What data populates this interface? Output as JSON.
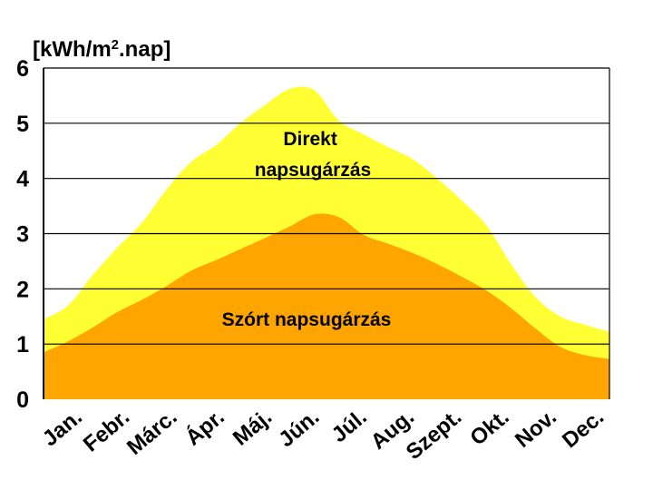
{
  "chart_data": {
    "type": "area",
    "ylabel": "[kWh/m².nap]",
    "ylabel_main": "[kWh/m",
    "ylabel_sup": "2",
    "ylabel_tail": ".nap]",
    "ylim": [
      0,
      6
    ],
    "yticks": [
      "0",
      "1",
      "2",
      "3",
      "4",
      "5",
      "6"
    ],
    "categories": [
      "Jan.",
      "Febr.",
      "Márc.",
      "Ápr.",
      "Máj.",
      "Jún.",
      "Júl.",
      "Aug.",
      "Szept.",
      "Okt.",
      "Nov.",
      "Dec."
    ],
    "x": [
      0,
      0.5,
      1,
      1.5,
      2,
      2.5,
      3,
      3.5,
      4,
      4.5,
      5,
      5.5,
      6,
      6.5,
      7,
      7.5,
      8,
      8.5,
      9,
      9.5,
      10,
      10.5,
      11,
      11.5
    ],
    "grid": true,
    "series": [
      {
        "name": "Szórt napsugárzás",
        "label_lines": [
          "Szórt napsugárzás"
        ],
        "color": "#FFA500",
        "values": [
          0.85,
          1.05,
          1.3,
          1.58,
          1.8,
          2.05,
          2.33,
          2.52,
          2.72,
          2.92,
          3.13,
          3.35,
          3.3,
          2.98,
          2.82,
          2.65,
          2.45,
          2.22,
          1.97,
          1.65,
          1.28,
          0.95,
          0.8,
          0.73
        ]
      },
      {
        "name": "Direkt napsugárzás",
        "label_lines": [
          "Direkt",
          "napsugárzás"
        ],
        "color": "#FFFF33",
        "values": [
          1.45,
          1.7,
          2.25,
          2.75,
          3.2,
          3.8,
          4.3,
          4.6,
          5.0,
          5.33,
          5.62,
          5.6,
          5.05,
          4.8,
          4.57,
          4.35,
          4.0,
          3.6,
          3.15,
          2.45,
          1.85,
          1.5,
          1.35,
          1.22
        ]
      }
    ],
    "colors": {
      "grid": "#000000",
      "axis": "#000000",
      "background": "#ffffff"
    }
  }
}
